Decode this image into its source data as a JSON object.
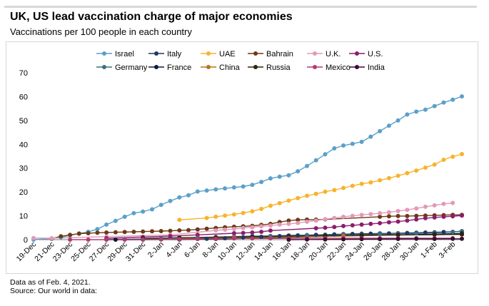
{
  "title": "UK, US lead vaccination charge of major economies",
  "subtitle": "Vaccinations per 100 people in each country",
  "footer": {
    "note": "Data as of Feb. 4, 2021.",
    "source": "Source: Our world in data:"
  },
  "colors": {
    "accent_rule": "#d8d8d8"
  },
  "chart_data": {
    "type": "line",
    "title": "UK, US lead vaccination charge of major economies",
    "subtitle": "Vaccinations per 100 people in each country",
    "xlabel": "",
    "ylabel": "",
    "ylim": [
      0,
      70
    ],
    "yticks": [
      0,
      10,
      20,
      30,
      40,
      50,
      60,
      70
    ],
    "grid": false,
    "legend_position": "top",
    "x_start_label": "19-Dec",
    "x_day_range": [
      0,
      46
    ],
    "xtick_days": [
      0,
      2,
      4,
      6,
      8,
      10,
      12,
      14,
      16,
      18,
      20,
      22,
      24,
      26,
      28,
      30,
      32,
      34,
      36,
      38,
      40,
      42,
      44,
      46
    ],
    "xtick_labels": [
      "19-Dec",
      "21-Dec",
      "23-Dec",
      "25-Dec",
      "27-Dec",
      "29-Dec",
      "31-Dec",
      "2-Jan",
      "4-Jan",
      "6-Jan",
      "8-Jan",
      "10-Jan",
      "12-Jan",
      "14-Jan",
      "16-Jan",
      "18-Jan",
      "20-Jan",
      "22-Jan",
      "24-Jan",
      "26-Jan",
      "28-Jan",
      "30-Jan",
      "1-Feb",
      "3-Feb"
    ],
    "series": [
      {
        "name": "Israel",
        "color": "#5ba0c8",
        "marker": "circle",
        "line": true,
        "points": [
          [
            0,
            0
          ],
          [
            2,
            0.5
          ],
          [
            3,
            1.0
          ],
          [
            4,
            1.8
          ],
          [
            5,
            2.6
          ],
          [
            6,
            3.3
          ],
          [
            7,
            4.4
          ],
          [
            8,
            6.3
          ],
          [
            9,
            7.9
          ],
          [
            10,
            9.6
          ],
          [
            11,
            11.1
          ],
          [
            12,
            11.8
          ],
          [
            13,
            12.7
          ],
          [
            14,
            14.6
          ],
          [
            15,
            16.2
          ],
          [
            16,
            17.7
          ],
          [
            17,
            18.6
          ],
          [
            18,
            20.2
          ],
          [
            19,
            20.6
          ],
          [
            20,
            21.1
          ],
          [
            21,
            21.5
          ],
          [
            22,
            21.9
          ],
          [
            23,
            22.3
          ],
          [
            24,
            23.0
          ],
          [
            25,
            24.2
          ],
          [
            26,
            25.7
          ],
          [
            27,
            26.4
          ],
          [
            28,
            27.0
          ],
          [
            29,
            28.7
          ],
          [
            30,
            30.9
          ],
          [
            31,
            33.3
          ],
          [
            32,
            35.8
          ],
          [
            33,
            38.3
          ],
          [
            34,
            39.5
          ],
          [
            35,
            40.2
          ],
          [
            36,
            41.0
          ],
          [
            37,
            43.2
          ],
          [
            38,
            45.5
          ],
          [
            39,
            47.8
          ],
          [
            40,
            50.0
          ],
          [
            41,
            52.5
          ],
          [
            42,
            53.7
          ],
          [
            43,
            54.5
          ],
          [
            44,
            56.0
          ],
          [
            45,
            57.5
          ],
          [
            46,
            58.7
          ],
          [
            47,
            60.1
          ]
        ]
      },
      {
        "name": "Italy",
        "color": "#1f3864",
        "marker": "circle",
        "line": true,
        "points": [
          [
            8,
            0.01
          ],
          [
            10,
            0.02
          ],
          [
            12,
            0.05
          ],
          [
            14,
            0.08
          ],
          [
            16,
            0.1
          ],
          [
            18,
            0.3
          ],
          [
            19,
            0.4
          ],
          [
            20,
            0.5
          ],
          [
            21,
            0.6
          ],
          [
            22,
            0.8
          ],
          [
            23,
            1.0
          ],
          [
            24,
            1.1
          ],
          [
            25,
            1.2
          ],
          [
            26,
            1.3
          ],
          [
            27,
            1.5
          ],
          [
            28,
            1.7
          ],
          [
            29,
            1.8
          ],
          [
            30,
            1.9
          ],
          [
            31,
            2.0
          ],
          [
            32,
            2.1
          ],
          [
            33,
            2.2
          ],
          [
            34,
            2.3
          ],
          [
            35,
            2.4
          ],
          [
            36,
            2.5
          ],
          [
            37,
            2.5
          ],
          [
            38,
            2.6
          ],
          [
            39,
            2.6
          ],
          [
            40,
            2.7
          ],
          [
            41,
            2.8
          ],
          [
            42,
            2.9
          ],
          [
            43,
            3.0
          ],
          [
            44,
            3.1
          ],
          [
            45,
            3.2
          ],
          [
            46,
            3.3
          ],
          [
            47,
            3.5
          ]
        ]
      },
      {
        "name": "UAE",
        "color": "#f7b32b",
        "marker": "circle",
        "line": true,
        "points": [
          [
            16,
            8.3
          ],
          [
            19,
            9.1
          ],
          [
            20,
            9.6
          ],
          [
            21,
            10.1
          ],
          [
            22,
            10.6
          ],
          [
            23,
            11.2
          ],
          [
            24,
            11.9
          ],
          [
            25,
            12.9
          ],
          [
            26,
            14.2
          ],
          [
            27,
            15.3
          ],
          [
            28,
            16.4
          ],
          [
            29,
            17.4
          ],
          [
            30,
            18.4
          ],
          [
            31,
            19.2
          ],
          [
            32,
            20.1
          ],
          [
            33,
            20.8
          ],
          [
            34,
            21.7
          ],
          [
            35,
            22.6
          ],
          [
            36,
            23.4
          ],
          [
            37,
            24.0
          ],
          [
            38,
            24.9
          ],
          [
            39,
            25.8
          ],
          [
            40,
            26.8
          ],
          [
            41,
            27.9
          ],
          [
            42,
            29.0
          ],
          [
            43,
            30.2
          ],
          [
            44,
            31.5
          ],
          [
            45,
            33.5
          ],
          [
            46,
            34.8
          ],
          [
            47,
            35.9
          ]
        ]
      },
      {
        "name": "Bahrain",
        "color": "#6b3a16",
        "marker": "circle",
        "line": true,
        "points": [
          [
            2,
            0.4
          ],
          [
            3,
            1.4
          ],
          [
            4,
            2.0
          ],
          [
            5,
            2.5
          ],
          [
            6,
            2.7
          ],
          [
            7,
            2.9
          ],
          [
            8,
            3.0
          ],
          [
            9,
            3.1
          ],
          [
            10,
            3.2
          ],
          [
            11,
            3.3
          ],
          [
            12,
            3.4
          ],
          [
            13,
            3.5
          ],
          [
            14,
            3.6
          ],
          [
            15,
            3.7
          ],
          [
            16,
            3.9
          ],
          [
            17,
            4.0
          ],
          [
            18,
            4.3
          ],
          [
            19,
            4.6
          ],
          [
            20,
            4.9
          ],
          [
            21,
            5.2
          ],
          [
            22,
            5.4
          ],
          [
            23,
            5.6
          ],
          [
            24,
            5.8
          ],
          [
            25,
            6.2
          ],
          [
            26,
            6.6
          ],
          [
            27,
            7.4
          ],
          [
            28,
            8.0
          ],
          [
            29,
            8.3
          ],
          [
            30,
            8.4
          ],
          [
            31,
            8.4
          ],
          [
            32,
            8.5
          ],
          [
            38,
            9.6
          ],
          [
            39,
            9.8
          ],
          [
            40,
            9.9
          ],
          [
            41,
            9.9
          ],
          [
            42,
            10.0
          ],
          [
            43,
            10.1
          ],
          [
            44,
            10.2
          ],
          [
            45,
            10.3
          ],
          [
            46,
            10.4
          ],
          [
            47,
            10.4
          ]
        ]
      },
      {
        "name": "U.K.",
        "color": "#e39ab8",
        "marker": "circle",
        "line": true,
        "points": [
          [
            0,
            0.7
          ],
          [
            2,
            0.6
          ],
          [
            8,
            1.3
          ],
          [
            15,
            2.0
          ],
          [
            20,
            3.9
          ],
          [
            21,
            4.2
          ],
          [
            22,
            4.5
          ],
          [
            23,
            4.9
          ],
          [
            24,
            5.2
          ],
          [
            25,
            5.6
          ],
          [
            26,
            5.9
          ],
          [
            27,
            6.3
          ],
          [
            28,
            6.6
          ],
          [
            29,
            7.0
          ],
          [
            30,
            7.5
          ],
          [
            31,
            8.0
          ],
          [
            32,
            8.6
          ],
          [
            33,
            9.1
          ],
          [
            34,
            9.6
          ],
          [
            35,
            10.0
          ],
          [
            36,
            10.4
          ],
          [
            37,
            10.7
          ],
          [
            38,
            11.1
          ],
          [
            39,
            11.5
          ],
          [
            40,
            12.0
          ],
          [
            41,
            12.5
          ],
          [
            42,
            13.1
          ],
          [
            43,
            13.8
          ],
          [
            44,
            14.4
          ],
          [
            45,
            15.0
          ],
          [
            46,
            15.4
          ]
        ]
      },
      {
        "name": "U.S.",
        "color": "#8c1c6e",
        "marker": "circle",
        "line": true,
        "points": [
          [
            8,
            0.6
          ],
          [
            12,
            1.1
          ],
          [
            15,
            1.5
          ],
          [
            18,
            2.0
          ],
          [
            22,
            2.7
          ],
          [
            23,
            2.8
          ],
          [
            24,
            3.0
          ],
          [
            25,
            3.3
          ],
          [
            26,
            3.8
          ],
          [
            31,
            4.8
          ],
          [
            32,
            5.0
          ],
          [
            33,
            5.3
          ],
          [
            34,
            5.7
          ],
          [
            35,
            6.0
          ],
          [
            36,
            6.3
          ],
          [
            37,
            6.6
          ],
          [
            38,
            6.9
          ],
          [
            39,
            7.3
          ],
          [
            40,
            7.6
          ],
          [
            41,
            8.0
          ],
          [
            42,
            8.5
          ],
          [
            43,
            9.0
          ],
          [
            44,
            9.3
          ],
          [
            45,
            9.6
          ],
          [
            46,
            9.8
          ],
          [
            47,
            10.1
          ]
        ]
      },
      {
        "name": "Germany",
        "color": "#3d6f7d",
        "marker": "circle",
        "line": true,
        "points": [
          [
            8,
            0.1
          ],
          [
            10,
            0.2
          ],
          [
            12,
            0.3
          ],
          [
            14,
            0.5
          ],
          [
            16,
            0.7
          ],
          [
            18,
            0.9
          ],
          [
            20,
            1.1
          ],
          [
            22,
            1.3
          ],
          [
            24,
            1.5
          ],
          [
            26,
            1.6
          ],
          [
            28,
            1.8
          ],
          [
            30,
            1.9
          ],
          [
            32,
            2.0
          ],
          [
            34,
            2.1
          ],
          [
            36,
            2.2
          ],
          [
            38,
            2.3
          ],
          [
            40,
            2.5
          ],
          [
            42,
            2.6
          ],
          [
            44,
            2.8
          ],
          [
            46,
            3.2
          ],
          [
            47,
            3.6
          ]
        ]
      },
      {
        "name": "France",
        "color": "#0b1b3f",
        "marker": "circle",
        "line": true,
        "points": [
          [
            9,
            0.0
          ],
          [
            12,
            0.0
          ],
          [
            16,
            0.1
          ],
          [
            20,
            0.3
          ],
          [
            24,
            0.6
          ],
          [
            28,
            1.0
          ],
          [
            32,
            1.4
          ],
          [
            36,
            1.7
          ],
          [
            40,
            2.0
          ],
          [
            44,
            2.3
          ],
          [
            47,
            2.6
          ]
        ]
      },
      {
        "name": "China",
        "color": "#b8741a",
        "marker": "circle",
        "line": true,
        "points": [
          [
            16,
            0.6
          ],
          [
            22,
            0.8
          ],
          [
            28,
            1.1
          ],
          [
            34,
            1.5
          ],
          [
            40,
            1.9
          ],
          [
            47,
            2.2
          ]
        ]
      },
      {
        "name": "Russia",
        "color": "#2d2410",
        "marker": "circle",
        "line": true,
        "points": [
          [
            12,
            0.5
          ],
          [
            16,
            0.8
          ],
          [
            20,
            1.0
          ],
          [
            24,
            1.2
          ],
          [
            28,
            1.5
          ],
          [
            32,
            1.7
          ],
          [
            36,
            1.9
          ],
          [
            40,
            2.0
          ],
          [
            44,
            2.1
          ],
          [
            47,
            2.2
          ]
        ]
      },
      {
        "name": "Mexico",
        "color": "#b23a73",
        "marker": "circle",
        "line": true,
        "points": [
          [
            4,
            0.0
          ],
          [
            6,
            0.0
          ],
          [
            8,
            0.0
          ],
          [
            10,
            0.0
          ],
          [
            12,
            0.05
          ],
          [
            14,
            0.1
          ],
          [
            16,
            0.2
          ],
          [
            18,
            0.3
          ],
          [
            20,
            0.4
          ],
          [
            22,
            0.5
          ],
          [
            24,
            0.5
          ],
          [
            26,
            0.5
          ],
          [
            28,
            0.6
          ],
          [
            30,
            0.6
          ],
          [
            32,
            0.6
          ],
          [
            34,
            0.6
          ],
          [
            36,
            0.6
          ],
          [
            38,
            0.6
          ],
          [
            40,
            0.6
          ],
          [
            42,
            0.6
          ],
          [
            44,
            0.6
          ],
          [
            46,
            0.6
          ]
        ]
      },
      {
        "name": "India",
        "color": "#3b0a36",
        "marker": "circle",
        "line": true,
        "points": [
          [
            28,
            0.01
          ],
          [
            30,
            0.05
          ],
          [
            32,
            0.1
          ],
          [
            34,
            0.15
          ],
          [
            36,
            0.2
          ],
          [
            38,
            0.25
          ],
          [
            40,
            0.3
          ],
          [
            42,
            0.35
          ],
          [
            44,
            0.3
          ],
          [
            46,
            0.35
          ],
          [
            47,
            0.35
          ]
        ]
      }
    ]
  }
}
